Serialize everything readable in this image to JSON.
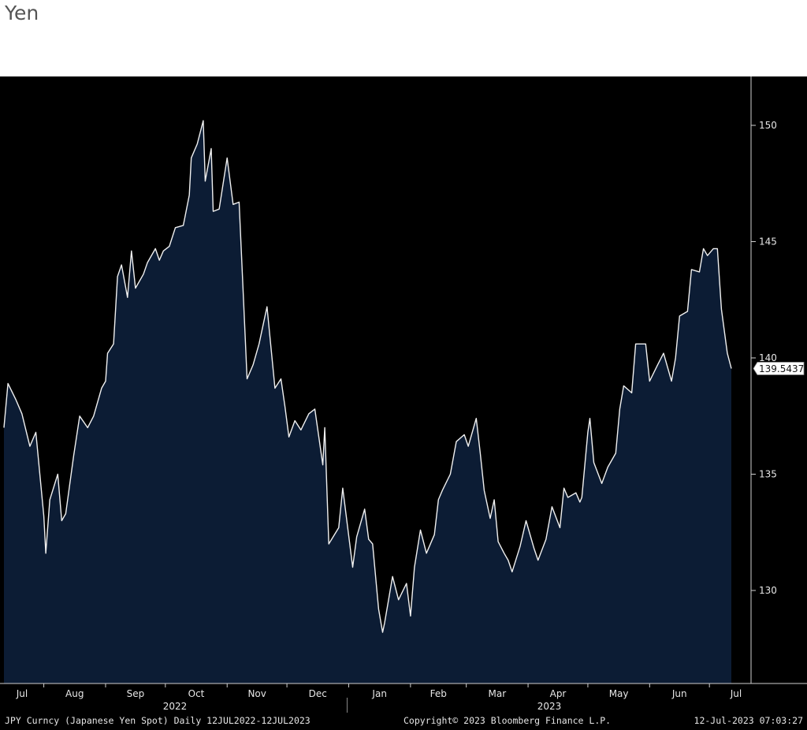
{
  "page": {
    "title": "Yen"
  },
  "chart_data": {
    "type": "area",
    "title": "Yen",
    "ylim": [
      126,
      152
    ],
    "yticks": [
      130,
      135,
      140,
      145,
      150
    ],
    "last_value": 139.5437,
    "last_value_label": "139.5437",
    "months": [
      "Jul",
      "Aug",
      "Sep",
      "Oct",
      "Nov",
      "Dec",
      "Jan",
      "Feb",
      "Mar",
      "Apr",
      "May",
      "Jun",
      "Jul"
    ],
    "years": [
      "2022",
      "2023"
    ],
    "colors": {
      "fill": "#0c1c34",
      "line": "#f0f0f0",
      "background": "#000000"
    },
    "grid": false,
    "series": [
      {
        "x": [
          "2022-07-12",
          "2022-07-14",
          "2022-07-18",
          "2022-07-21",
          "2022-07-25",
          "2022-07-28",
          "2022-08-01",
          "2022-08-02",
          "2022-08-04",
          "2022-08-08",
          "2022-08-10",
          "2022-08-12",
          "2022-08-16",
          "2022-08-19",
          "2022-08-23",
          "2022-08-26",
          "2022-08-30",
          "2022-09-01",
          "2022-09-02",
          "2022-09-05",
          "2022-09-07",
          "2022-09-09",
          "2022-09-12",
          "2022-09-14",
          "2022-09-16",
          "2022-09-20",
          "2022-09-22",
          "2022-09-26",
          "2022-09-28",
          "2022-09-30",
          "2022-10-03",
          "2022-10-06",
          "2022-10-10",
          "2022-10-13",
          "2022-10-14",
          "2022-10-17",
          "2022-10-20",
          "2022-10-21",
          "2022-10-24",
          "2022-10-25",
          "2022-10-28",
          "2022-11-01",
          "2022-11-04",
          "2022-11-07",
          "2022-11-10",
          "2022-11-11",
          "2022-11-14",
          "2022-11-17",
          "2022-11-21",
          "2022-11-25",
          "2022-11-28",
          "2022-11-30",
          "2022-12-02",
          "2022-12-05",
          "2022-12-08",
          "2022-12-12",
          "2022-12-15",
          "2022-12-19",
          "2022-12-20",
          "2022-12-22",
          "2022-12-27",
          "2022-12-29",
          "2023-01-03",
          "2023-01-05",
          "2023-01-09",
          "2023-01-11",
          "2023-01-13",
          "2023-01-16",
          "2023-01-18",
          "2023-01-19",
          "2023-01-23",
          "2023-01-26",
          "2023-01-30",
          "2023-02-01",
          "2023-02-03",
          "2023-02-06",
          "2023-02-09",
          "2023-02-13",
          "2023-02-15",
          "2023-02-17",
          "2023-02-21",
          "2023-02-24",
          "2023-02-28",
          "2023-03-02",
          "2023-03-06",
          "2023-03-08",
          "2023-03-10",
          "2023-03-13",
          "2023-03-15",
          "2023-03-17",
          "2023-03-20",
          "2023-03-22",
          "2023-03-24",
          "2023-03-28",
          "2023-03-31",
          "2023-04-04",
          "2023-04-06",
          "2023-04-10",
          "2023-04-13",
          "2023-04-17",
          "2023-04-19",
          "2023-04-21",
          "2023-04-25",
          "2023-04-27",
          "2023-04-28",
          "2023-05-01",
          "2023-05-02",
          "2023-05-04",
          "2023-05-08",
          "2023-05-11",
          "2023-05-15",
          "2023-05-17",
          "2023-05-19",
          "2023-05-23",
          "2023-05-25",
          "2023-05-30",
          "2023-06-01",
          "2023-06-05",
          "2023-06-08",
          "2023-06-12",
          "2023-06-14",
          "2023-06-16",
          "2023-06-20",
          "2023-06-22",
          "2023-06-26",
          "2023-06-28",
          "2023-06-30",
          "2023-07-03",
          "2023-07-05",
          "2023-07-07",
          "2023-07-10",
          "2023-07-12"
        ],
        "values": [
          137.0,
          138.9,
          138.2,
          137.6,
          136.2,
          136.8,
          133.2,
          131.6,
          133.9,
          135.0,
          133.0,
          133.3,
          135.8,
          137.5,
          137.0,
          137.5,
          138.7,
          139.0,
          140.2,
          140.6,
          143.5,
          144.0,
          142.6,
          144.6,
          143.0,
          143.6,
          144.1,
          144.7,
          144.2,
          144.6,
          144.8,
          145.6,
          145.7,
          147.0,
          148.6,
          149.2,
          150.2,
          147.6,
          149.0,
          146.3,
          146.4,
          148.6,
          146.6,
          146.7,
          141.0,
          139.1,
          139.7,
          140.6,
          142.2,
          138.7,
          139.1,
          137.9,
          136.6,
          137.3,
          136.9,
          137.6,
          137.8,
          135.4,
          137.0,
          132.0,
          132.7,
          134.4,
          131.0,
          132.3,
          133.5,
          132.2,
          132.0,
          129.2,
          128.2,
          128.6,
          130.6,
          129.6,
          130.3,
          128.9,
          131.0,
          132.6,
          131.6,
          132.4,
          133.9,
          134.3,
          135.0,
          136.4,
          136.7,
          136.2,
          137.4,
          135.9,
          134.3,
          133.1,
          133.9,
          132.1,
          131.6,
          131.3,
          130.8,
          131.9,
          133.0,
          131.8,
          131.3,
          132.2,
          133.6,
          132.7,
          134.4,
          134.0,
          134.2,
          133.8,
          134.0,
          136.8,
          137.4,
          135.5,
          134.6,
          135.3,
          135.9,
          137.8,
          138.8,
          138.5,
          140.6,
          140.6,
          139.0,
          139.7,
          140.2,
          139.0,
          140.0,
          141.8,
          142.0,
          143.8,
          143.7,
          144.7,
          144.4,
          144.7,
          144.7,
          142.1,
          140.2,
          139.5437
        ]
      }
    ],
    "footer": {
      "left": "JPY Curncy (Japanese Yen Spot)  Daily 12JUL2022-12JUL2023",
      "center": "Copyright© 2023 Bloomberg Finance L.P.",
      "right": "12-Jul-2023 07:03:27"
    }
  }
}
